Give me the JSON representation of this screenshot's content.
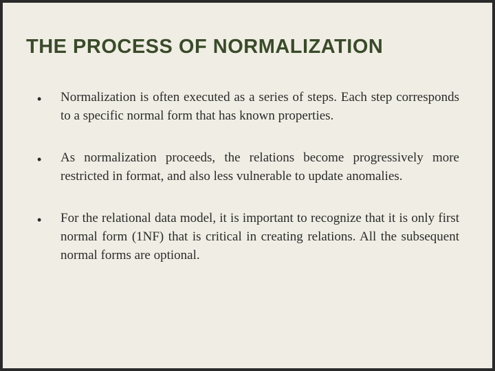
{
  "slide": {
    "title": "THE PROCESS OF NORMALIZATION",
    "bullets": [
      "Normalization is often executed as a series of steps. Each step corresponds to a specific normal form that has known properties.",
      "As normalization proceeds, the relations become progressively more restricted in format, and also less vulnerable to update anomalies.",
      "For the relational data model, it is important to recognize that it is only first normal form (1NF) that is critical in creating relations. All the subsequent normal forms are optional."
    ],
    "style": {
      "background_color": "#f0eee4",
      "border_color": "#2a2a2a",
      "border_width": 4,
      "title_color": "#3a4a2a",
      "title_fontsize": 29,
      "title_font": "Arial",
      "title_weight": "bold",
      "body_color": "#2a2a2a",
      "body_fontsize": 19,
      "body_font": "Georgia",
      "bullet_char": "•",
      "text_align": "justify"
    }
  }
}
